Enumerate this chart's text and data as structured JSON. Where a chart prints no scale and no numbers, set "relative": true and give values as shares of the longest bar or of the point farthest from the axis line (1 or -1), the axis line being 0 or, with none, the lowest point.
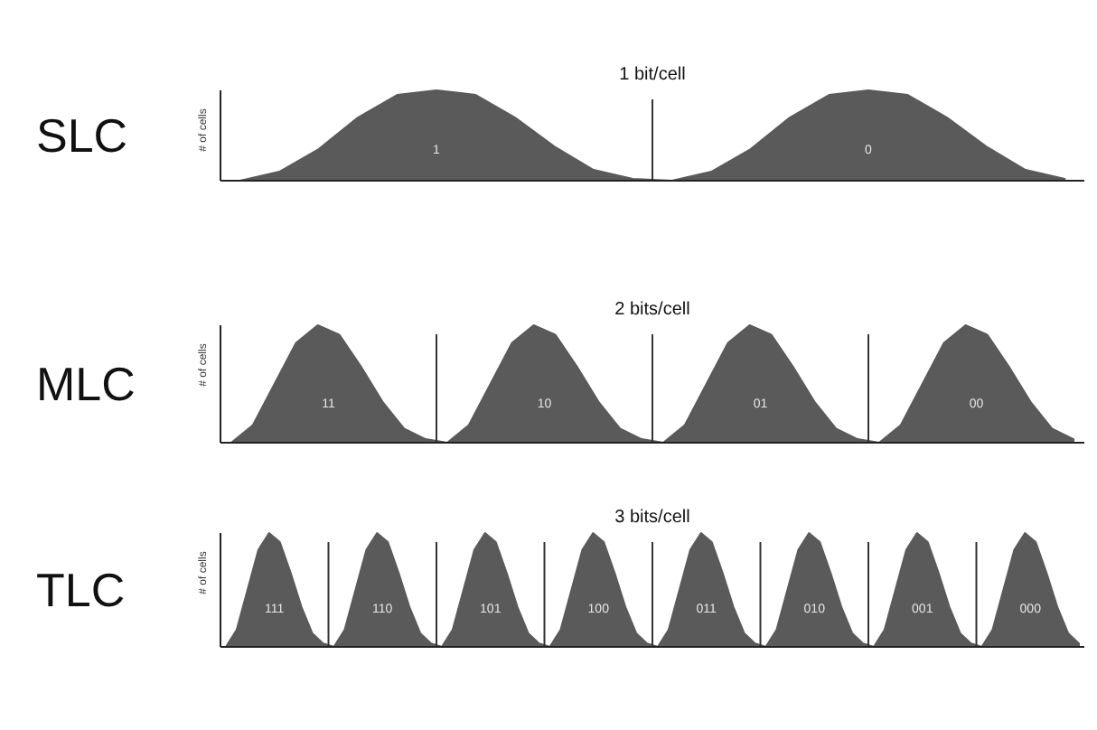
{
  "chart_data": [
    {
      "type": "area",
      "title": "SLC",
      "subtitle": "1 bit/cell",
      "ylabel": "# of cells",
      "relative": true,
      "categories": [
        null,
        null,
        null,
        null,
        null,
        null,
        null,
        null,
        null,
        null,
        null,
        null,
        null,
        null,
        null,
        null,
        null,
        null,
        null,
        null,
        null,
        null
      ],
      "series": [
        {
          "color": "#5a5a5a",
          "values": [
            0,
            0.1,
            0.35,
            0.7,
            0.95,
            1,
            0.95,
            0.7,
            0.38,
            0.12,
            0.02,
            0,
            0.1,
            0.35,
            0.7,
            0.95,
            1,
            0.95,
            0.7,
            0.38,
            0.12,
            0.02
          ]
        }
      ],
      "annotations": [
        "1",
        "0"
      ]
    },
    {
      "type": "area",
      "title": "MLC",
      "subtitle": "2 bits/cell",
      "ylabel": "# of cells",
      "relative": true,
      "categories": [
        null,
        null,
        null,
        null,
        null,
        null,
        null,
        null,
        null,
        null,
        null,
        null,
        null,
        null,
        null,
        null,
        null,
        null,
        null,
        null,
        null,
        null,
        null,
        null,
        null,
        null,
        null,
        null,
        null,
        null,
        null,
        null,
        null,
        null,
        null,
        null,
        null,
        null,
        null,
        null
      ],
      "series": [
        {
          "color": "#5a5a5a",
          "values": [
            0,
            0.15,
            0.5,
            0.85,
            1,
            0.92,
            0.65,
            0.35,
            0.12,
            0.03,
            0,
            0.15,
            0.5,
            0.85,
            1,
            0.92,
            0.65,
            0.35,
            0.12,
            0.03,
            0,
            0.15,
            0.5,
            0.85,
            1,
            0.92,
            0.65,
            0.35,
            0.12,
            0.03,
            0,
            0.15,
            0.5,
            0.85,
            1,
            0.92,
            0.65,
            0.35,
            0.12,
            0.03
          ]
        }
      ],
      "annotations": [
        "11",
        "10",
        "01",
        "00"
      ]
    },
    {
      "type": "area",
      "title": "TLC",
      "subtitle": "3 bits/cell",
      "ylabel": "# of cells",
      "relative": true,
      "categories": [
        null,
        null,
        null,
        null,
        null,
        null,
        null,
        null,
        null,
        null,
        null,
        null,
        null,
        null,
        null,
        null,
        null,
        null,
        null,
        null,
        null,
        null,
        null,
        null,
        null,
        null,
        null,
        null,
        null,
        null,
        null,
        null,
        null,
        null,
        null,
        null,
        null,
        null,
        null,
        null,
        null,
        null,
        null,
        null,
        null,
        null,
        null,
        null,
        null,
        null,
        null,
        null,
        null,
        null,
        null,
        null,
        null,
        null,
        null,
        null,
        null,
        null,
        null,
        null,
        null,
        null,
        null,
        null,
        null,
        null,
        null,
        null,
        null,
        null,
        null,
        null,
        null,
        null,
        null,
        null
      ],
      "series": [
        {
          "color": "#5a5a5a",
          "values": [
            0,
            0.15,
            0.5,
            0.85,
            1,
            0.92,
            0.65,
            0.35,
            0.12,
            0.03,
            0,
            0.15,
            0.5,
            0.85,
            1,
            0.92,
            0.65,
            0.35,
            0.12,
            0.03,
            0,
            0.15,
            0.5,
            0.85,
            1,
            0.92,
            0.65,
            0.35,
            0.12,
            0.03,
            0,
            0.15,
            0.5,
            0.85,
            1,
            0.92,
            0.65,
            0.35,
            0.12,
            0.03,
            0,
            0.15,
            0.5,
            0.85,
            1,
            0.92,
            0.65,
            0.35,
            0.12,
            0.03,
            0,
            0.15,
            0.5,
            0.85,
            1,
            0.92,
            0.65,
            0.35,
            0.12,
            0.03,
            0,
            0.15,
            0.5,
            0.85,
            1,
            0.92,
            0.65,
            0.35,
            0.12,
            0.03,
            0,
            0.15,
            0.5,
            0.85,
            1,
            0.92,
            0.65,
            0.35,
            0.12,
            0.03
          ]
        }
      ],
      "annotations": [
        "111",
        "110",
        "101",
        "100",
        "011",
        "010",
        "001",
        "000"
      ]
    }
  ]
}
